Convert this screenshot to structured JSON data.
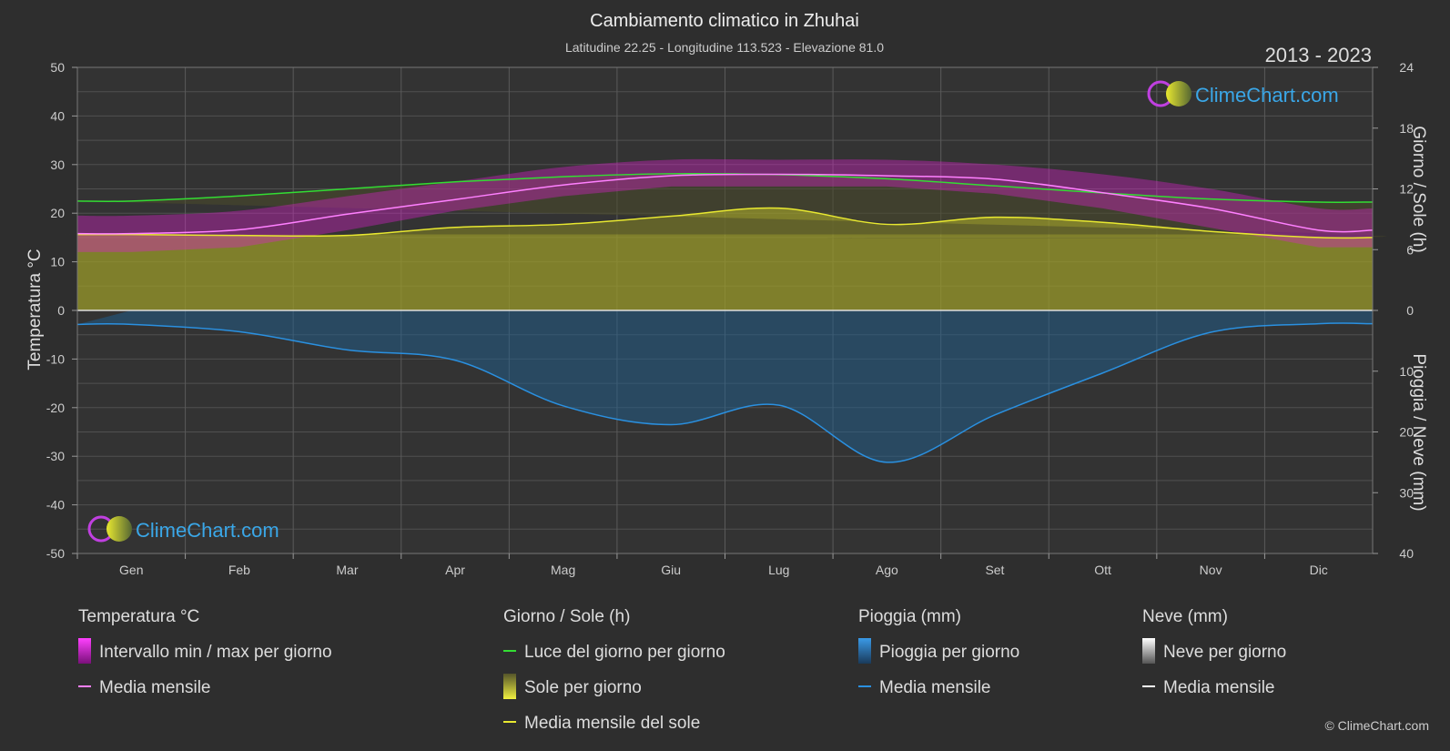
{
  "header": {
    "title": "Cambiamento climatico in Zhuhai",
    "subtitle": "Latitudine 22.25 - Longitudine 113.523 - Elevazione 81.0",
    "period": "2013 - 2023"
  },
  "brand": {
    "text": "ClimeChart.com"
  },
  "copyright": "© ClimeChart.com",
  "colors": {
    "background": "#2e2e2e",
    "temp_range": "#e020d0",
    "temp_mean": "#ff80ff",
    "daylight": "#33dd33",
    "sun_fill": "#9a9a2a",
    "sun_mean": "#e8e830",
    "rain_fill": "#1f5f8f",
    "rain_mean": "#2a90e0",
    "snow_mean": "#ffffff",
    "brand": "#3aa7e8"
  },
  "chart_data": {
    "type": "area",
    "months": [
      "Gen",
      "Feb",
      "Mar",
      "Apr",
      "Mag",
      "Giu",
      "Lug",
      "Ago",
      "Set",
      "Ott",
      "Nov",
      "Dic"
    ],
    "axes": {
      "left": {
        "label": "Temperatura °C",
        "min": -50,
        "max": 50,
        "ticks": [
          50,
          40,
          30,
          20,
          10,
          0,
          -10,
          -20,
          -30,
          -40,
          -50
        ]
      },
      "right_top": {
        "label": "Giorno / Sole (h)",
        "min": 0,
        "max": 24,
        "ticks": [
          24,
          18,
          12,
          6,
          0
        ]
      },
      "right_bottom": {
        "label": "Pioggia / Neve (mm)",
        "min": 0,
        "max": 40,
        "ticks": [
          0,
          10,
          20,
          30,
          40
        ]
      }
    },
    "series": [
      {
        "key": "temp_max",
        "values": [
          19.5,
          20.5,
          23.5,
          26.5,
          29.5,
          31.0,
          31.0,
          31.0,
          30.0,
          28.0,
          25.0,
          21.0
        ]
      },
      {
        "key": "temp_min",
        "values": [
          12.0,
          13.0,
          16.5,
          20.5,
          23.5,
          25.5,
          25.5,
          25.5,
          24.0,
          21.0,
          17.0,
          13.0
        ]
      },
      {
        "key": "temp_mean",
        "name": "Media mensile",
        "values": [
          15.8,
          16.6,
          19.8,
          22.8,
          25.8,
          27.7,
          28.0,
          27.7,
          27.0,
          24.2,
          21.0,
          16.5
        ]
      },
      {
        "key": "daylight",
        "name": "Luce del giorno per giorno",
        "values": [
          10.8,
          11.3,
          12.0,
          12.7,
          13.2,
          13.5,
          13.4,
          13.0,
          12.3,
          11.6,
          11.0,
          10.7
        ]
      },
      {
        "key": "sunshine",
        "name": "Media mensile del sole",
        "values": [
          7.5,
          7.4,
          7.4,
          8.2,
          8.5,
          9.3,
          10.1,
          8.5,
          9.2,
          8.7,
          7.8,
          7.2
        ]
      },
      {
        "key": "rain",
        "name": "Media mensile",
        "values": [
          2.3,
          3.5,
          6.5,
          8.2,
          15.7,
          18.8,
          15.6,
          25.0,
          17.2,
          10.3,
          3.6,
          2.2
        ]
      },
      {
        "key": "snow",
        "name": "Media mensile",
        "values": [
          0,
          0,
          0,
          0,
          0,
          0,
          0,
          0,
          0,
          0,
          0,
          0
        ]
      }
    ]
  },
  "legend": {
    "groups": [
      {
        "title": "Temperatura °C",
        "items": [
          {
            "label": "Intervallo min / max per giorno",
            "swatch": "gradient-magenta"
          },
          {
            "label": "Media mensile",
            "swatch": "line-pink"
          }
        ]
      },
      {
        "title": "Giorno / Sole (h)",
        "items": [
          {
            "label": "Luce del giorno per giorno",
            "swatch": "line-green"
          },
          {
            "label": "Sole per giorno",
            "swatch": "gradient-yellow"
          },
          {
            "label": "Media mensile del sole",
            "swatch": "line-yellow"
          }
        ]
      },
      {
        "title": "Pioggia (mm)",
        "items": [
          {
            "label": "Pioggia per giorno",
            "swatch": "gradient-blue"
          },
          {
            "label": "Media mensile",
            "swatch": "line-blue"
          }
        ]
      },
      {
        "title": "Neve (mm)",
        "items": [
          {
            "label": "Neve per giorno",
            "swatch": "gradient-white"
          },
          {
            "label": "Media mensile",
            "swatch": "line-white"
          }
        ]
      }
    ]
  }
}
